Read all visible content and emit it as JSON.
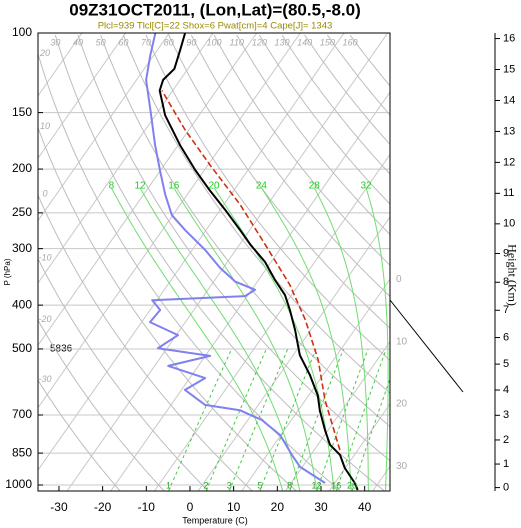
{
  "chart_data": {
    "type": "skewt",
    "title": "09Z31OCT2011, (Lon,Lat)=(80.5,-8.0)",
    "subtitle": "Plcl=939 Tlcl[C]=22 Shox=6 Pwat[cm]=4 Cape[J]= 1343",
    "x_label": "Temperature (C)",
    "y_label": "P (hPa)",
    "y2_label": "Height (Km)",
    "annotation": "5836",
    "xlim": [
      -34.8,
      45.8
    ],
    "xticks": [
      -30,
      -20,
      -10,
      0,
      10,
      20,
      30,
      40
    ],
    "ylim": [
      1031,
      100
    ],
    "yticks": [
      100,
      150,
      200,
      250,
      300,
      400,
      500,
      700,
      850,
      1000
    ],
    "log_y": true,
    "grid": true,
    "y2ticks": [
      0,
      1,
      2,
      3,
      4,
      5,
      6,
      7,
      8,
      9,
      10,
      11,
      12,
      13,
      14,
      15,
      16
    ],
    "series": [
      {
        "color": "#000000",
        "dashed": false,
        "pressure": [
          1026,
          990,
          917,
          858,
          815,
          756,
          683,
          634,
          571,
          516,
          454,
          410,
          380,
          352,
          321,
          294,
          273,
          246,
          223,
          201,
          177,
          152,
          134,
          127,
          120,
          109,
          100
        ],
        "temperature": [
          26.4,
          24.6,
          19.9,
          16.7,
          12.8,
          9.3,
          4.9,
          2.1,
          -3.0,
          -8.5,
          -13.6,
          -18.0,
          -21.5,
          -26.2,
          -31.4,
          -37.5,
          -42.2,
          -48.9,
          -55.5,
          -62.1,
          -69.6,
          -77.8,
          -83.0,
          -83.9,
          -83.1,
          -84.8,
          -86.4
        ]
      },
      {
        "color": "#8080f0",
        "dashed": false,
        "pressure": [
          990,
          912,
          858,
          775,
          718,
          683,
          665,
          616,
          580,
          545,
          518,
          498,
          466,
          436,
          410,
          390,
          382,
          370,
          355,
          331,
          302,
          273,
          253,
          228,
          203,
          177,
          148,
          127,
          112,
          100
        ],
        "temperature": [
          17.8,
          9.5,
          5.7,
          -0.2,
          -6.8,
          -13.4,
          -22.2,
          -29.2,
          -26.5,
          -36.9,
          -28.9,
          -42.1,
          -39.6,
          -48.1,
          -47.7,
          -51.1,
          -30.5,
          -29.2,
          -35.0,
          -40.7,
          -47.0,
          -54.8,
          -60.2,
          -65.0,
          -69.8,
          -75.3,
          -82.0,
          -87.8,
          -90.8,
          -93.2
        ]
      },
      {
        "color": "#d03010",
        "dashed": true,
        "pressure": [
          837,
          649,
          529,
          431,
          361,
          294,
          240,
          196,
          164,
          134
        ],
        "temperature": [
          15.9,
          4.5,
          -3.5,
          -12.9,
          -22.0,
          -34.1,
          -46.2,
          -59.5,
          -70.8,
          -82.5
        ]
      }
    ],
    "dry_adiabats": [
      -30,
      -20,
      -10,
      0,
      10,
      20,
      30,
      40,
      50,
      60,
      70,
      80,
      90,
      100,
      110,
      120,
      130,
      140,
      150,
      160
    ],
    "moist_adiabats": [
      8,
      12,
      16,
      20,
      24,
      28,
      32
    ],
    "mixing_ratios": [
      1,
      2,
      3,
      5,
      8,
      12,
      16,
      20
    ],
    "isotherm_labels": [
      0,
      10,
      20,
      30
    ]
  }
}
